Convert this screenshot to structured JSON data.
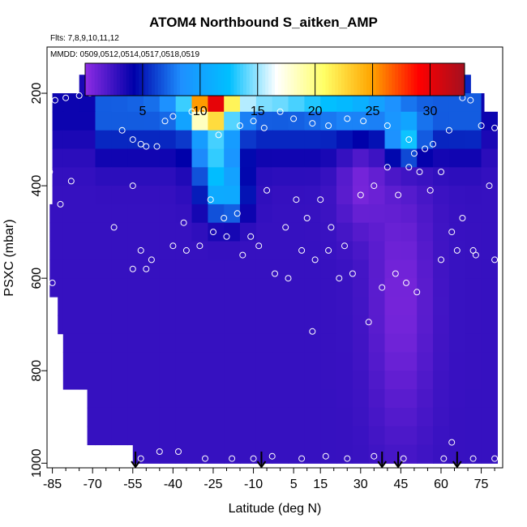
{
  "chart_data": {
    "type": "heatmap",
    "title": "ATOM4 Northbound S_aitken_AMP",
    "subtitle": "Flts: 7,8,9,10,11,12",
    "annotation": "MMDD: 0509,0512,0514,0517,0518,0519",
    "xlabel": "Latitude (deg N)",
    "ylabel": "PSXC (mbar)",
    "x_ticks": [
      -85,
      -70,
      -55,
      -40,
      -25,
      -10,
      5,
      15,
      30,
      45,
      60,
      75
    ],
    "y_ticks": [
      200,
      400,
      600,
      800,
      1000
    ],
    "xlim": [
      -87,
      83
    ],
    "ylim": [
      1010,
      100
    ],
    "y_axis_reversed": true,
    "colorbar": {
      "ticks": [
        5,
        10,
        15,
        20,
        25,
        30
      ],
      "range": [
        0,
        33
      ],
      "colors": [
        "#8a2be2",
        "#0000aa",
        "#1e90ff",
        "#00bfff",
        "#ffffff",
        "#ffff66",
        "#ffa500",
        "#ff0000",
        "#a01020"
      ]
    },
    "pressure_levels": [
      180,
      220,
      260,
      300,
      340,
      380,
      420,
      460,
      500,
      540,
      580,
      620,
      660,
      700,
      740,
      780,
      820,
      860,
      900,
      940,
      980
    ],
    "lat_bins": [
      -87,
      -81,
      -75,
      -69,
      -63,
      -57,
      -51,
      -45,
      -39,
      -33,
      -27,
      -21,
      -15,
      -9,
      -3,
      3,
      9,
      15,
      21,
      27,
      33,
      39,
      45,
      51,
      57,
      63,
      69,
      75,
      81
    ],
    "arrow_latitudes": [
      -54,
      -7,
      38,
      44,
      66
    ],
    "sample_points": [
      [
        -80,
        210
      ],
      [
        -75,
        205
      ],
      [
        -71,
        200
      ],
      [
        -68,
        195
      ],
      [
        -64,
        195
      ],
      [
        -60,
        195
      ],
      [
        -84,
        215
      ],
      [
        -59,
        280
      ],
      [
        -55,
        300
      ],
      [
        -52,
        310
      ],
      [
        -43,
        260
      ],
      [
        -40,
        250
      ],
      [
        -33,
        240
      ],
      [
        -29,
        240
      ],
      [
        -23,
        290
      ],
      [
        -15,
        270
      ],
      [
        -10,
        260
      ],
      [
        -6,
        275
      ],
      [
        0,
        240
      ],
      [
        5,
        255
      ],
      [
        12,
        265
      ],
      [
        18,
        270
      ],
      [
        25,
        255
      ],
      [
        31,
        260
      ],
      [
        37,
        185
      ],
      [
        40,
        270
      ],
      [
        48,
        300
      ],
      [
        50,
        330
      ],
      [
        54,
        320
      ],
      [
        57,
        310
      ],
      [
        63,
        280
      ],
      [
        68,
        210
      ],
      [
        71,
        215
      ],
      [
        75,
        270
      ],
      [
        80,
        275
      ],
      [
        -78,
        390
      ],
      [
        -82,
        440
      ],
      [
        -62,
        490
      ],
      [
        -55,
        400
      ],
      [
        -50,
        315
      ],
      [
        -46,
        315
      ],
      [
        -36,
        480
      ],
      [
        -30,
        530
      ],
      [
        -26,
        430
      ],
      [
        -21,
        470
      ],
      [
        -16,
        460
      ],
      [
        -11,
        510
      ],
      [
        -5,
        410
      ],
      [
        2,
        490
      ],
      [
        6,
        430
      ],
      [
        10,
        470
      ],
      [
        15,
        430
      ],
      [
        19,
        490
      ],
      [
        24,
        530
      ],
      [
        30,
        420
      ],
      [
        35,
        400
      ],
      [
        40,
        360
      ],
      [
        44,
        420
      ],
      [
        48,
        360
      ],
      [
        52,
        370
      ],
      [
        56,
        410
      ],
      [
        60,
        370
      ],
      [
        64,
        500
      ],
      [
        68,
        470
      ],
      [
        72,
        540
      ],
      [
        78,
        400
      ],
      [
        -52,
        540
      ],
      [
        -48,
        560
      ],
      [
        -40,
        530
      ],
      [
        -35,
        540
      ],
      [
        -25,
        500
      ],
      [
        -20,
        510
      ],
      [
        -14,
        550
      ],
      [
        -8,
        530
      ],
      [
        -2,
        590
      ],
      [
        3,
        600
      ],
      [
        8,
        540
      ],
      [
        13,
        560
      ],
      [
        18,
        540
      ],
      [
        22,
        600
      ],
      [
        27,
        590
      ],
      [
        38,
        620
      ],
      [
        43,
        590
      ],
      [
        47,
        610
      ],
      [
        51,
        630
      ],
      [
        60,
        560
      ],
      [
        66,
        540
      ],
      [
        73,
        550
      ],
      [
        80,
        560
      ],
      [
        -83,
        800
      ],
      [
        -52,
        990
      ],
      [
        -45,
        975
      ],
      [
        -38,
        975
      ],
      [
        -28,
        990
      ],
      [
        -18,
        990
      ],
      [
        -10,
        990
      ],
      [
        -3,
        985
      ],
      [
        8,
        990
      ],
      [
        17,
        985
      ],
      [
        25,
        990
      ],
      [
        35,
        985
      ],
      [
        46,
        990
      ],
      [
        61,
        990
      ],
      [
        64,
        955
      ],
      [
        72,
        990
      ],
      [
        80,
        990
      ],
      [
        33,
        695
      ],
      [
        12,
        715
      ],
      [
        -86,
        370
      ],
      [
        -85,
        610
      ],
      [
        -55,
        580
      ],
      [
        -50,
        580
      ]
    ]
  }
}
